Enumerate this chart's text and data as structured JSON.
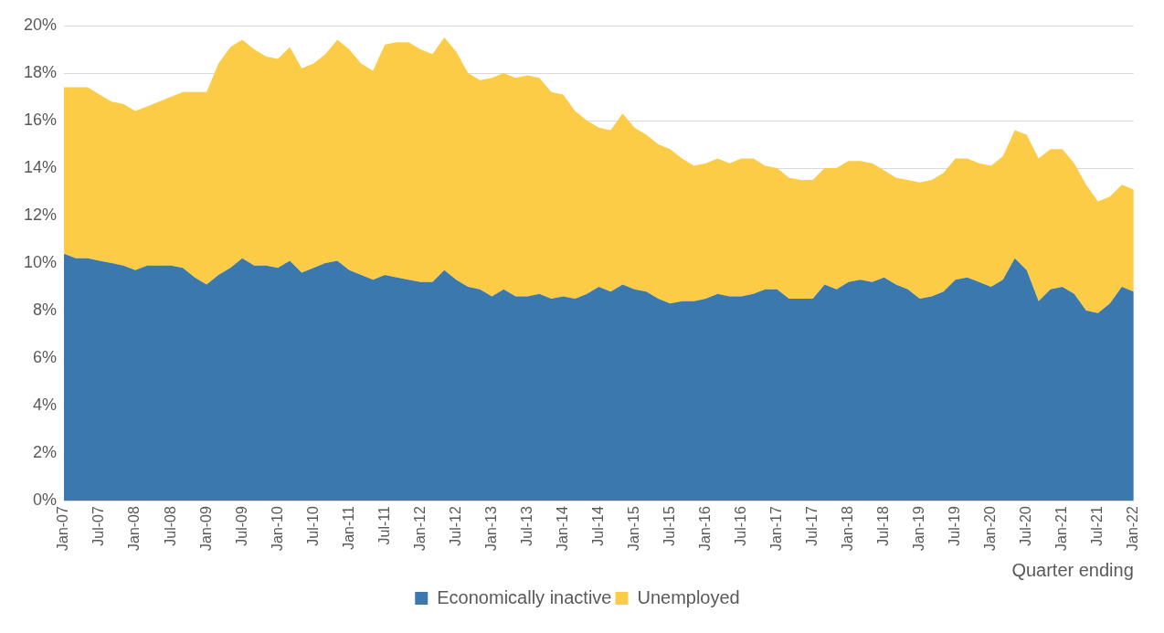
{
  "chart_data": {
    "type": "area",
    "stacked": true,
    "xlabel": "Quarter ending",
    "categories": [
      "Jan-07",
      null,
      null,
      "Jul-07",
      null,
      null,
      "Jan-08",
      null,
      null,
      "Jul-08",
      null,
      null,
      "Jan-09",
      null,
      null,
      "Jul-09",
      null,
      null,
      "Jan-10",
      null,
      null,
      "Jul-10",
      null,
      null,
      "Jan-11",
      null,
      null,
      "Jul-11",
      null,
      null,
      "Jan-12",
      null,
      null,
      "Jul-12",
      null,
      null,
      "Jan-13",
      null,
      null,
      "Jul-13",
      null,
      null,
      "Jan-14",
      null,
      null,
      "Jul-14",
      null,
      null,
      "Jan-15",
      null,
      null,
      "Jul-15",
      null,
      null,
      "Jan-16",
      null,
      null,
      "Jul-16",
      null,
      null,
      "Jan-17",
      null,
      null,
      "Jul-17",
      null,
      null,
      "Jan-18",
      null,
      null,
      "Jul-18",
      null,
      null,
      "Jan-19",
      null,
      null,
      "Jul-19",
      null,
      null,
      "Jan-20",
      null,
      null,
      "Jul-20",
      null,
      null,
      "Jan-21",
      null,
      null,
      "Jul-21",
      null,
      null,
      "Jan-22"
    ],
    "series": [
      {
        "name": "Economically inactive",
        "color": "#3a78ae",
        "values": [
          10.4,
          10.2,
          10.2,
          10.1,
          10.0,
          9.9,
          9.7,
          9.9,
          9.9,
          9.9,
          9.8,
          9.4,
          9.1,
          9.5,
          9.8,
          10.2,
          9.9,
          9.9,
          9.8,
          10.1,
          9.6,
          9.8,
          10.0,
          10.1,
          9.7,
          9.5,
          9.3,
          9.5,
          9.4,
          9.3,
          9.2,
          9.2,
          9.7,
          9.3,
          9.0,
          8.9,
          8.6,
          8.9,
          8.6,
          8.6,
          8.7,
          8.5,
          8.6,
          8.5,
          8.7,
          9.0,
          8.8,
          9.1,
          8.9,
          8.8,
          8.5,
          8.3,
          8.4,
          8.4,
          8.5,
          8.7,
          8.6,
          8.6,
          8.7,
          8.9,
          8.9,
          8.5,
          8.5,
          8.5,
          9.1,
          8.9,
          9.2,
          9.3,
          9.2,
          9.4,
          9.1,
          8.9,
          8.5,
          8.6,
          8.8,
          9.3,
          9.4,
          9.2,
          9.0,
          9.3,
          10.2,
          9.7,
          8.4,
          8.9,
          9.0,
          8.7,
          8.0,
          7.9,
          8.3,
          9.0,
          8.8
        ]
      },
      {
        "name": "Unemployed",
        "color": "#fdcc47",
        "values": [
          7.0,
          7.2,
          7.2,
          7.0,
          6.8,
          6.8,
          6.7,
          6.7,
          6.9,
          7.1,
          7.4,
          7.8,
          8.1,
          8.9,
          9.3,
          9.2,
          9.1,
          8.8,
          8.8,
          9.0,
          8.6,
          8.6,
          8.8,
          9.3,
          9.3,
          8.9,
          8.8,
          9.7,
          9.9,
          10.0,
          9.8,
          9.6,
          9.8,
          9.6,
          9.0,
          8.8,
          9.2,
          9.1,
          9.2,
          9.3,
          9.1,
          8.7,
          8.5,
          7.9,
          7.3,
          6.7,
          6.8,
          7.2,
          6.8,
          6.6,
          6.5,
          6.5,
          6.0,
          5.7,
          5.7,
          5.7,
          5.6,
          5.8,
          5.7,
          5.2,
          5.1,
          5.1,
          5.0,
          5.0,
          4.9,
          5.1,
          5.1,
          5.0,
          5.0,
          4.5,
          4.5,
          4.6,
          4.9,
          4.9,
          5.0,
          5.1,
          5.0,
          5.0,
          5.1,
          5.2,
          5.4,
          5.7,
          6.0,
          5.9,
          5.8,
          5.5,
          5.3,
          4.7,
          4.5,
          4.3,
          4.3
        ]
      }
    ],
    "ylim": [
      0,
      20
    ],
    "yticks": [
      {
        "value": 0,
        "label": "0%"
      },
      {
        "value": 2,
        "label": "2%"
      },
      {
        "value": 4,
        "label": "4%"
      },
      {
        "value": 6,
        "label": "6%"
      },
      {
        "value": 8,
        "label": "8%"
      },
      {
        "value": 10,
        "label": "10%"
      },
      {
        "value": 12,
        "label": "12%"
      },
      {
        "value": 14,
        "label": "14%"
      },
      {
        "value": 16,
        "label": "16%"
      },
      {
        "value": 18,
        "label": "18%"
      },
      {
        "value": 20,
        "label": "20%"
      }
    ],
    "grid": "y",
    "legend": "bottom"
  }
}
